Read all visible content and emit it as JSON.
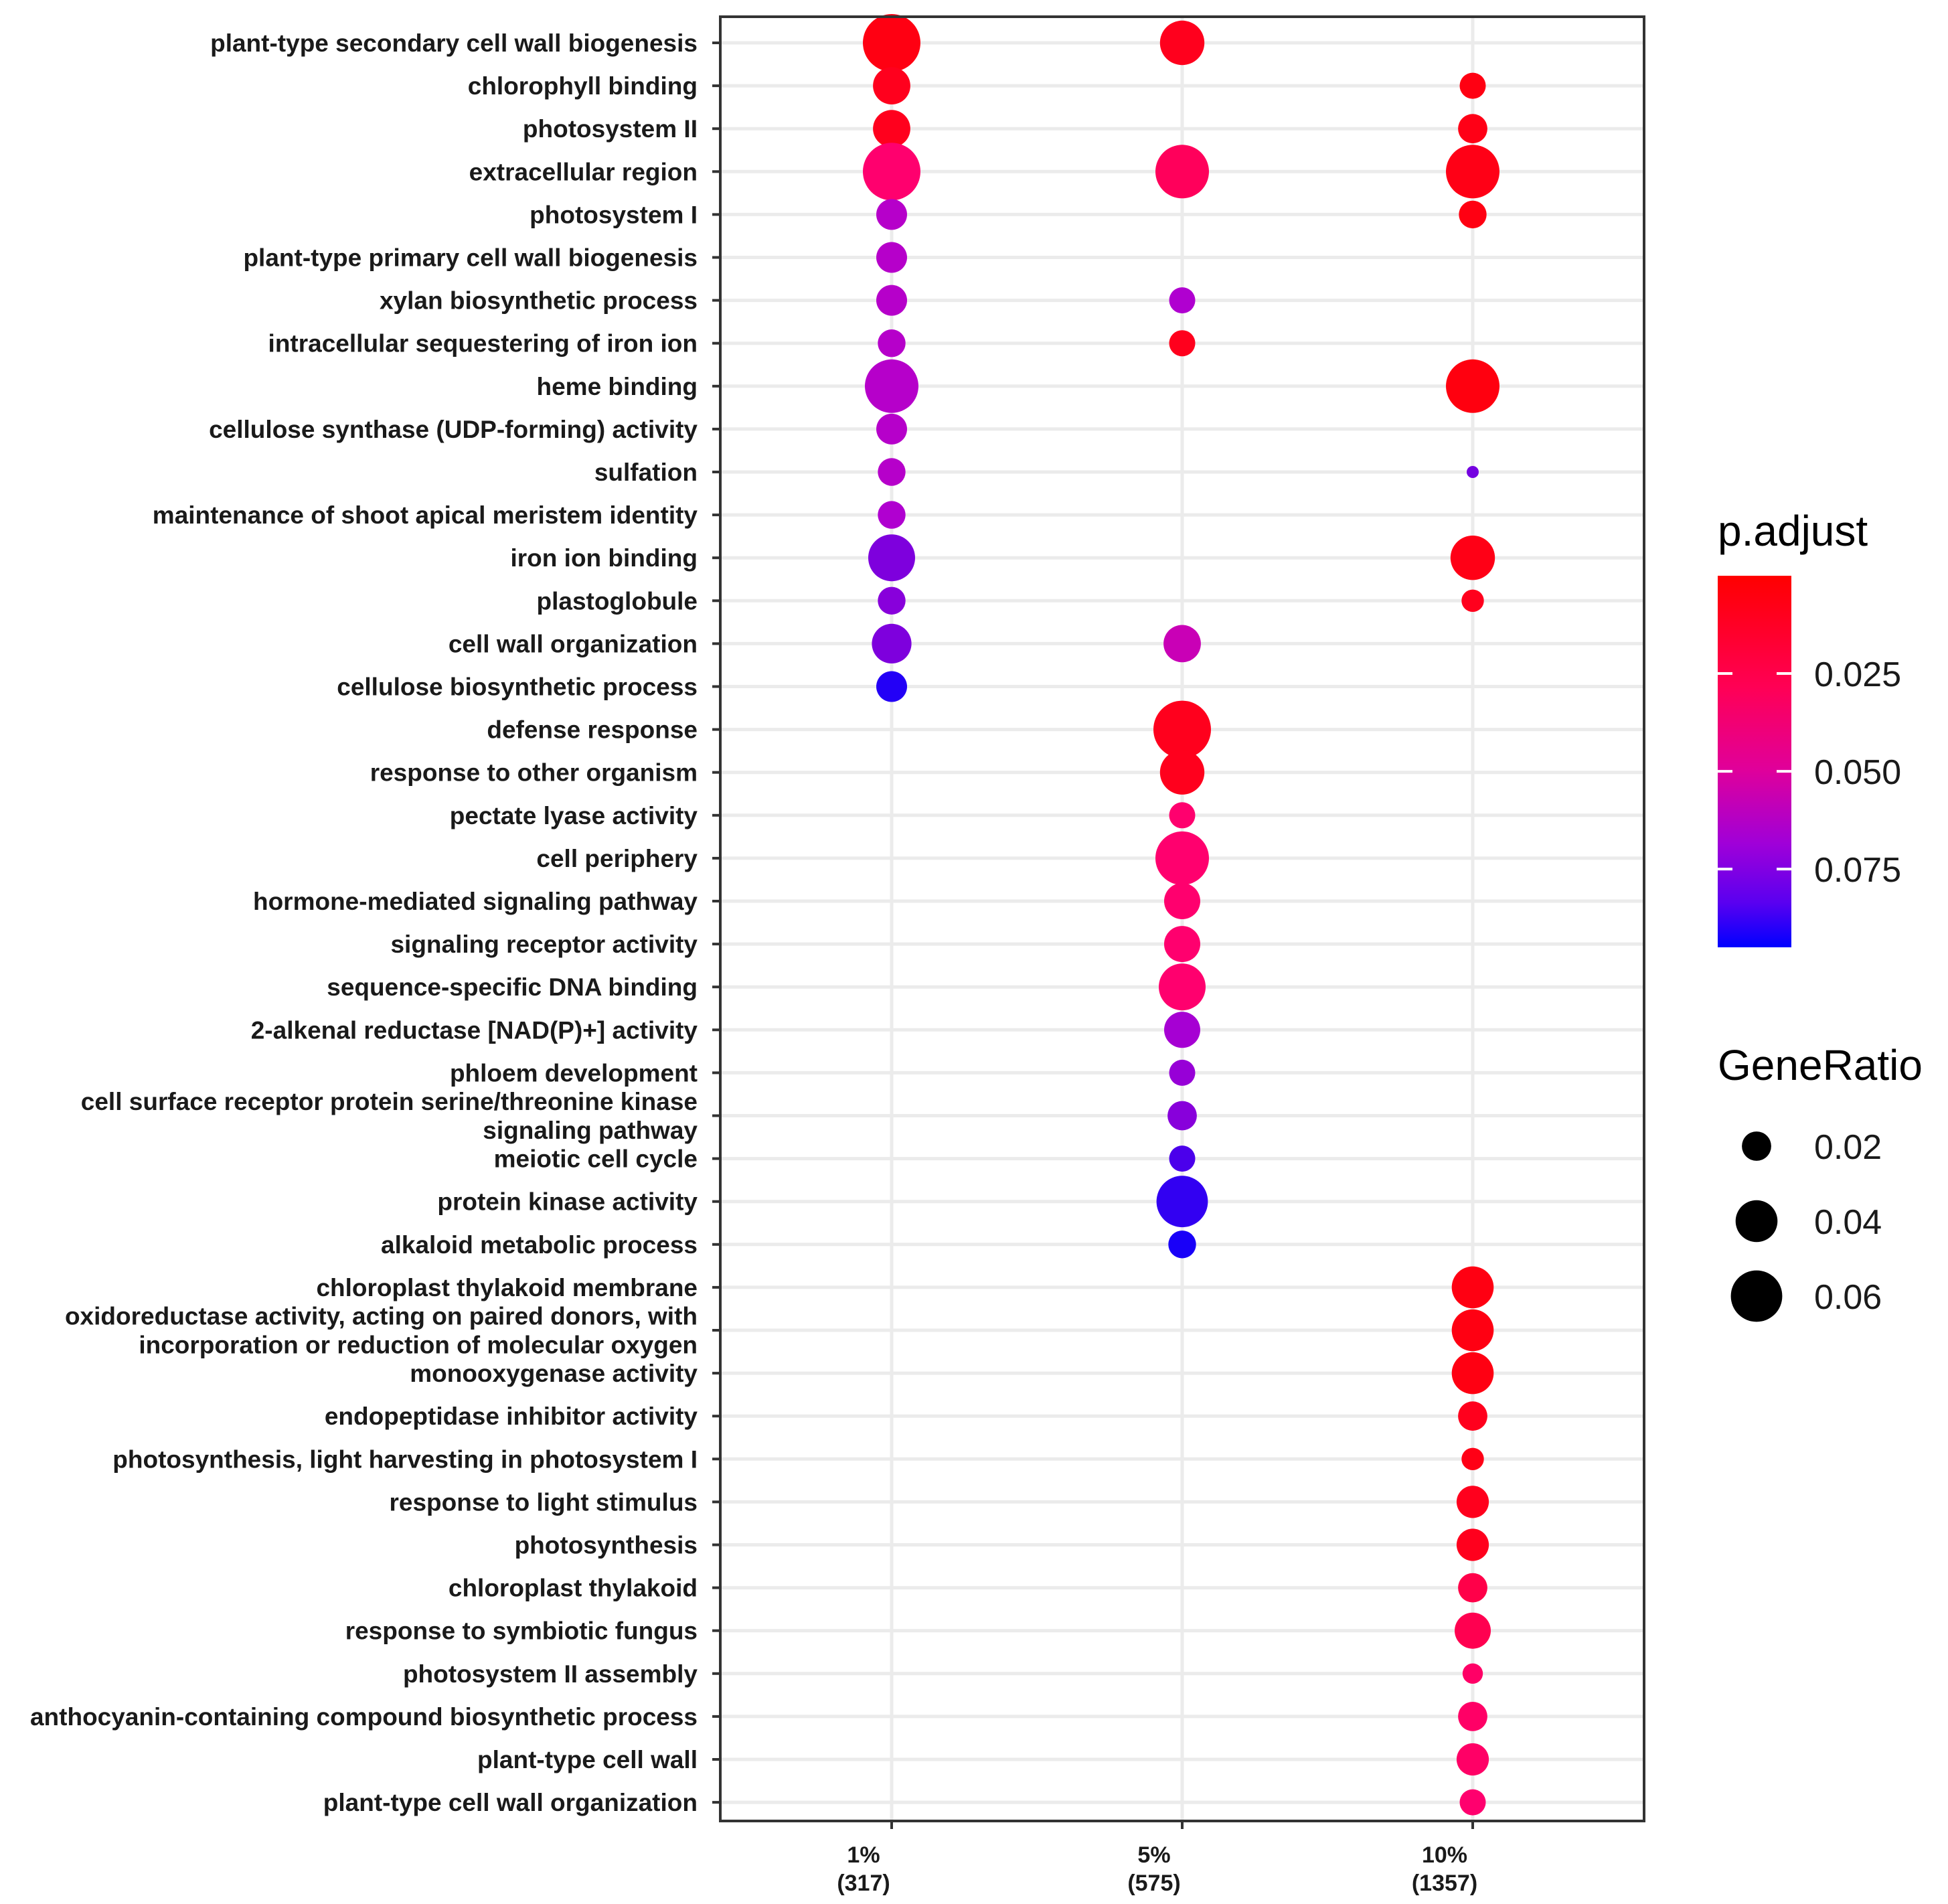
{
  "chart_data": {
    "type": "scatter",
    "subtype": "dot-plot",
    "x_categories": [
      {
        "label": "1%",
        "count": "(317)"
      },
      {
        "label": "5%",
        "count": "(575)"
      },
      {
        "label": "10%",
        "count": "(1357)"
      }
    ],
    "terms": [
      [
        "plant-type secondary cell wall biogenesis"
      ],
      [
        "chlorophyll binding"
      ],
      [
        "photosystem II"
      ],
      [
        "extracellular region"
      ],
      [
        "photosystem I"
      ],
      [
        "plant-type primary cell wall biogenesis"
      ],
      [
        "xylan biosynthetic process"
      ],
      [
        "intracellular sequestering of iron ion"
      ],
      [
        "heme binding"
      ],
      [
        "cellulose synthase (UDP-forming) activity"
      ],
      [
        "sulfation"
      ],
      [
        "maintenance of shoot apical meristem identity"
      ],
      [
        "iron ion binding"
      ],
      [
        "plastoglobule"
      ],
      [
        "cell wall organization"
      ],
      [
        "cellulose biosynthetic process"
      ],
      [
        "defense response"
      ],
      [
        "response to other organism"
      ],
      [
        "pectate lyase activity"
      ],
      [
        "cell periphery"
      ],
      [
        "hormone-mediated signaling pathway"
      ],
      [
        "signaling receptor activity"
      ],
      [
        "sequence-specific DNA binding"
      ],
      [
        "2-alkenal reductase [NAD(P)+] activity"
      ],
      [
        "phloem development"
      ],
      [
        "cell surface receptor protein serine/threonine kinase",
        "signaling pathway"
      ],
      [
        "meiotic cell cycle"
      ],
      [
        "protein kinase activity"
      ],
      [
        "alkaloid metabolic process"
      ],
      [
        "chloroplast thylakoid membrane"
      ],
      [
        "oxidoreductase activity, acting on paired donors, with",
        "incorporation or reduction of molecular oxygen"
      ],
      [
        "monooxygenase activity"
      ],
      [
        "endopeptidase inhibitor activity"
      ],
      [
        "photosynthesis, light harvesting in photosystem I"
      ],
      [
        "response to light stimulus"
      ],
      [
        "photosynthesis"
      ],
      [
        "chloroplast thylakoid"
      ],
      [
        "response to symbiotic fungus"
      ],
      [
        "photosystem II assembly"
      ],
      [
        "anthocyanin-containing compound biosynthetic process"
      ],
      [
        "plant-type cell wall"
      ],
      [
        "plant-type cell wall organization"
      ]
    ],
    "points": [
      {
        "term": 0,
        "x": 0,
        "gene_ratio": 0.075,
        "p_adjust": 0.005
      },
      {
        "term": 0,
        "x": 1,
        "gene_ratio": 0.045,
        "p_adjust": 0.008
      },
      {
        "term": 1,
        "x": 0,
        "gene_ratio": 0.032,
        "p_adjust": 0.008
      },
      {
        "term": 1,
        "x": 2,
        "gene_ratio": 0.016,
        "p_adjust": 0.005
      },
      {
        "term": 2,
        "x": 0,
        "gene_ratio": 0.032,
        "p_adjust": 0.008
      },
      {
        "term": 2,
        "x": 2,
        "gene_ratio": 0.02,
        "p_adjust": 0.006
      },
      {
        "term": 3,
        "x": 0,
        "gene_ratio": 0.075,
        "p_adjust": 0.03
      },
      {
        "term": 3,
        "x": 1,
        "gene_ratio": 0.065,
        "p_adjust": 0.025
      },
      {
        "term": 3,
        "x": 2,
        "gene_ratio": 0.065,
        "p_adjust": 0.006
      },
      {
        "term": 4,
        "x": 0,
        "gene_ratio": 0.022,
        "p_adjust": 0.058
      },
      {
        "term": 4,
        "x": 2,
        "gene_ratio": 0.018,
        "p_adjust": 0.005
      },
      {
        "term": 5,
        "x": 0,
        "gene_ratio": 0.022,
        "p_adjust": 0.058
      },
      {
        "term": 6,
        "x": 0,
        "gene_ratio": 0.022,
        "p_adjust": 0.058
      },
      {
        "term": 6,
        "x": 1,
        "gene_ratio": 0.016,
        "p_adjust": 0.06
      },
      {
        "term": 7,
        "x": 0,
        "gene_ratio": 0.018,
        "p_adjust": 0.058
      },
      {
        "term": 7,
        "x": 1,
        "gene_ratio": 0.016,
        "p_adjust": 0.008
      },
      {
        "term": 8,
        "x": 0,
        "gene_ratio": 0.065,
        "p_adjust": 0.058
      },
      {
        "term": 8,
        "x": 2,
        "gene_ratio": 0.065,
        "p_adjust": 0.004
      },
      {
        "term": 9,
        "x": 0,
        "gene_ratio": 0.022,
        "p_adjust": 0.058
      },
      {
        "term": 10,
        "x": 0,
        "gene_ratio": 0.018,
        "p_adjust": 0.058
      },
      {
        "term": 10,
        "x": 2,
        "gene_ratio": 0.004,
        "p_adjust": 0.072
      },
      {
        "term": 11,
        "x": 0,
        "gene_ratio": 0.018,
        "p_adjust": 0.06
      },
      {
        "term": 12,
        "x": 0,
        "gene_ratio": 0.05,
        "p_adjust": 0.07
      },
      {
        "term": 12,
        "x": 2,
        "gene_ratio": 0.045,
        "p_adjust": 0.006
      },
      {
        "term": 13,
        "x": 0,
        "gene_ratio": 0.018,
        "p_adjust": 0.068
      },
      {
        "term": 13,
        "x": 2,
        "gene_ratio": 0.012,
        "p_adjust": 0.008
      },
      {
        "term": 14,
        "x": 0,
        "gene_ratio": 0.036,
        "p_adjust": 0.07
      },
      {
        "term": 14,
        "x": 1,
        "gene_ratio": 0.032,
        "p_adjust": 0.052
      },
      {
        "term": 15,
        "x": 0,
        "gene_ratio": 0.022,
        "p_adjust": 0.088
      },
      {
        "term": 16,
        "x": 1,
        "gene_ratio": 0.075,
        "p_adjust": 0.008
      },
      {
        "term": 17,
        "x": 1,
        "gene_ratio": 0.045,
        "p_adjust": 0.008
      },
      {
        "term": 18,
        "x": 1,
        "gene_ratio": 0.016,
        "p_adjust": 0.03
      },
      {
        "term": 19,
        "x": 1,
        "gene_ratio": 0.065,
        "p_adjust": 0.03
      },
      {
        "term": 20,
        "x": 1,
        "gene_ratio": 0.03,
        "p_adjust": 0.03
      },
      {
        "term": 21,
        "x": 1,
        "gene_ratio": 0.03,
        "p_adjust": 0.03
      },
      {
        "term": 22,
        "x": 1,
        "gene_ratio": 0.05,
        "p_adjust": 0.03
      },
      {
        "term": 23,
        "x": 1,
        "gene_ratio": 0.03,
        "p_adjust": 0.062
      },
      {
        "term": 24,
        "x": 1,
        "gene_ratio": 0.016,
        "p_adjust": 0.065
      },
      {
        "term": 25,
        "x": 1,
        "gene_ratio": 0.02,
        "p_adjust": 0.068
      },
      {
        "term": 26,
        "x": 1,
        "gene_ratio": 0.016,
        "p_adjust": 0.08
      },
      {
        "term": 27,
        "x": 1,
        "gene_ratio": 0.06,
        "p_adjust": 0.085
      },
      {
        "term": 28,
        "x": 1,
        "gene_ratio": 0.018,
        "p_adjust": 0.09
      },
      {
        "term": 29,
        "x": 2,
        "gene_ratio": 0.04,
        "p_adjust": 0.005
      },
      {
        "term": 30,
        "x": 2,
        "gene_ratio": 0.04,
        "p_adjust": 0.005
      },
      {
        "term": 31,
        "x": 2,
        "gene_ratio": 0.04,
        "p_adjust": 0.005
      },
      {
        "term": 32,
        "x": 2,
        "gene_ratio": 0.02,
        "p_adjust": 0.008
      },
      {
        "term": 33,
        "x": 2,
        "gene_ratio": 0.012,
        "p_adjust": 0.006
      },
      {
        "term": 34,
        "x": 2,
        "gene_ratio": 0.024,
        "p_adjust": 0.008
      },
      {
        "term": 35,
        "x": 2,
        "gene_ratio": 0.024,
        "p_adjust": 0.008
      },
      {
        "term": 36,
        "x": 2,
        "gene_ratio": 0.02,
        "p_adjust": 0.02
      },
      {
        "term": 37,
        "x": 2,
        "gene_ratio": 0.03,
        "p_adjust": 0.022
      },
      {
        "term": 38,
        "x": 2,
        "gene_ratio": 0.01,
        "p_adjust": 0.028
      },
      {
        "term": 39,
        "x": 2,
        "gene_ratio": 0.02,
        "p_adjust": 0.028
      },
      {
        "term": 40,
        "x": 2,
        "gene_ratio": 0.024,
        "p_adjust": 0.028
      },
      {
        "term": 41,
        "x": 2,
        "gene_ratio": 0.016,
        "p_adjust": 0.03
      }
    ],
    "color_legend": {
      "title": "p.adjust",
      "min": 0.0,
      "max": 0.095,
      "ticks": [
        {
          "value": 0.025,
          "label": "0.025"
        },
        {
          "value": 0.05,
          "label": "0.050"
        },
        {
          "value": 0.075,
          "label": "0.075"
        }
      ],
      "low_color": "#ff0000",
      "mid_color": "#ff0080",
      "mid_value": 0.035,
      "purple_color": "#b000d0",
      "purple_value": 0.06,
      "high_color": "#0000ff"
    },
    "size_legend": {
      "title": "GeneRatio",
      "entries": [
        {
          "value": 0.02,
          "label": "0.02"
        },
        {
          "value": 0.04,
          "label": "0.04"
        },
        {
          "value": 0.06,
          "label": "0.06"
        }
      ],
      "min_value": 0.004,
      "max_value": 0.075
    },
    "grid": true
  }
}
